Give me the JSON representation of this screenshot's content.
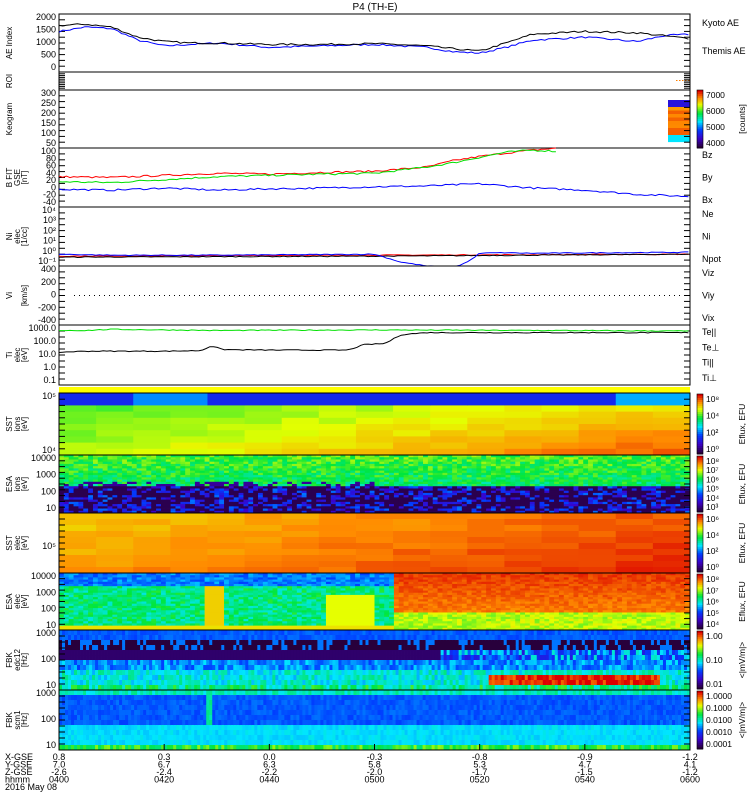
{
  "title": "P4 (TH-E)",
  "colors": {
    "red": "#ff0000",
    "green": "#00e000",
    "blue": "#0000ff",
    "black": "#000000",
    "yellow": "#ffff00",
    "orange": "#ff8000"
  },
  "chart_data": {
    "type": "multi-panel",
    "time_axis": {
      "minutes": [
        0,
        20,
        40,
        60,
        80,
        100,
        120
      ],
      "labels": [
        "0400",
        "0420",
        "0440",
        "0500",
        "0520",
        "0540",
        "0600"
      ],
      "date": "2016 May 08",
      "rows": [
        {
          "label": "X-GSE",
          "values": [
            "0.8",
            "0.3",
            "0.0",
            "-0.3",
            "-0.8",
            "-0.9",
            "-1.2"
          ]
        },
        {
          "label": "Y-GSE",
          "values": [
            "7.0",
            "6.7",
            "6.3",
            "5.8",
            "5.3",
            "4.7",
            "4.1"
          ]
        },
        {
          "label": "Z-GSE",
          "values": [
            "-2.6",
            "-2.4",
            "-2.2",
            "-2.0",
            "-1.7",
            "-1.5",
            "-1.2"
          ]
        },
        {
          "label": "hhmm",
          "values": [
            "0400",
            "0420",
            "0440",
            "0500",
            "0520",
            "0540",
            "0600"
          ]
        }
      ]
    },
    "panels": [
      {
        "id": "ae",
        "ylabel": "AE Index",
        "ticks": [
          "2000",
          "1500",
          "1000",
          "500",
          "0"
        ],
        "ylim": [
          0,
          2000
        ],
        "series": [
          {
            "name": "Kyoto AE",
            "color": "#0000ff",
            "x": [
              0,
              5,
              10,
              15,
              20,
              25,
              30,
              40,
              50,
              60,
              70,
              75,
              80,
              85,
              90,
              100,
              110,
              115,
              120
            ],
            "y": [
              1400,
              1550,
              1500,
              1100,
              900,
              950,
              1000,
              850,
              900,
              950,
              850,
              700,
              650,
              850,
              1100,
              1200,
              1050,
              1250,
              1300
            ]
          },
          {
            "name": "Themis AE",
            "color": "#000000",
            "x": [
              0,
              5,
              10,
              15,
              20,
              25,
              30,
              40,
              50,
              60,
              70,
              75,
              80,
              85,
              90,
              100,
              110,
              115,
              120
            ],
            "y": [
              1600,
              1650,
              1550,
              1200,
              1050,
              1000,
              1000,
              950,
              950,
              980,
              900,
              800,
              720,
              1000,
              1300,
              1400,
              1350,
              1250,
              1150
            ]
          }
        ]
      },
      {
        "id": "roi",
        "ylabel": "ROI"
      },
      {
        "id": "keogram",
        "ylabel": "Keogram",
        "ticks": [
          "300",
          "250",
          "200",
          "150",
          "100",
          "50"
        ],
        "colorbar": {
          "ticks": [
            "7000",
            "6000",
            "5000",
            "4000"
          ],
          "unit": "[counts]"
        }
      },
      {
        "id": "bfield",
        "ylabel": "B FIT",
        "ylabel2": "GSE",
        "ylabel3": "[nT]",
        "ticks": [
          "100",
          "80",
          "60",
          "40",
          "20",
          "0",
          "-20",
          "-40"
        ],
        "ylim": [
          -40,
          100
        ],
        "series": [
          {
            "name": "Bz",
            "color": "#ff0000",
            "x": [
              0,
              10,
              20,
              30,
              40,
              50,
              60,
              70,
              75,
              80,
              85,
              90,
              95
            ],
            "y": [
              32,
              30,
              35,
              40,
              38,
              42,
              45,
              55,
              70,
              80,
              88,
              95,
              100
            ]
          },
          {
            "name": "By",
            "color": "#00e000",
            "x": [
              0,
              10,
              20,
              30,
              40,
              50,
              60,
              70,
              75,
              80,
              85,
              90,
              95
            ],
            "y": [
              20,
              18,
              25,
              32,
              35,
              38,
              40,
              55,
              65,
              78,
              90,
              95,
              92
            ]
          },
          {
            "name": "Bx",
            "color": "#0000ff",
            "x": [
              0,
              10,
              20,
              30,
              40,
              50,
              60,
              70,
              80,
              90,
              100,
              110,
              120
            ],
            "y": [
              2,
              0,
              5,
              0,
              3,
              5,
              8,
              10,
              15,
              5,
              0,
              -10,
              -15
            ]
          }
        ]
      },
      {
        "id": "density",
        "ylabel": "Ni",
        "ylabel2": "elec",
        "ylabel3": "[1/cc]",
        "ticks": [
          "10⁴",
          "10³",
          "10²",
          "10¹",
          "10⁰",
          "10⁻¹"
        ],
        "ylim_log10": [
          -1,
          5
        ],
        "series": [
          {
            "name": "Ne",
            "color": "#ff0000",
            "x": [
              0,
              30,
              60,
              90,
              120
            ],
            "y": [
              0.0,
              0.05,
              0.1,
              0.15,
              0.2
            ]
          },
          {
            "name": "Ni",
            "color": "#000000",
            "x": [
              0,
              30,
              60,
              90,
              120
            ],
            "y": [
              -0.1,
              -0.05,
              0.0,
              0.1,
              0.2
            ]
          },
          {
            "name": "Npot",
            "color": "#0000ff",
            "x": [
              0,
              10,
              30,
              60,
              65,
              70,
              75,
              78,
              80,
              85,
              90,
              120
            ],
            "y": [
              0.2,
              0.1,
              0.1,
              0.2,
              -0.6,
              -1.0,
              -1.2,
              -0.5,
              0.3,
              0.35,
              0.3,
              0.4
            ]
          }
        ]
      },
      {
        "id": "velocity",
        "ylabel": "Vi",
        "ylabel3": "[km/s]",
        "ticks": [
          "400",
          "200",
          "0",
          "-200",
          "-400"
        ],
        "ylim": [
          -500,
          500
        ],
        "series": [
          {
            "name": "Viz",
            "color": "#ff0000"
          },
          {
            "name": "Viy",
            "color": "#00e000"
          },
          {
            "name": "Vix",
            "color": "#0000ff"
          }
        ]
      },
      {
        "id": "temperature",
        "ylabel": "Ti",
        "ylabel2": "elec",
        "ylabel3": "[eV]",
        "ticks": [
          "1000.0",
          "100.0",
          "10.0",
          "1.0",
          "0.1"
        ],
        "ylim_log10": [
          -1.5,
          4
        ],
        "series": [
          {
            "name": "Te||",
            "color": "#000000",
            "x": [
              0,
              5,
              10,
              20,
              27,
              29,
              31,
              40,
              55,
              58,
              62,
              65,
              67,
              70,
              120
            ],
            "y": [
              1.5,
              1.6,
              1.6,
              1.6,
              1.65,
              2.1,
              1.75,
              1.7,
              1.7,
              2.2,
              2.3,
              3.1,
              3.2,
              3.3,
              3.3
            ]
          },
          {
            "name": "Te⊥",
            "color": "#ff0000"
          },
          {
            "name": "Ti||",
            "color": "#00e000",
            "x": [
              0,
              5,
              10,
              30,
              60,
              90,
              120
            ],
            "y": [
              3.5,
              3.5,
              3.6,
              3.5,
              3.55,
              3.5,
              3.45
            ]
          },
          {
            "name": "Ti⊥",
            "color": "#0000ff"
          }
        ]
      },
      {
        "id": "sst-ion",
        "ylabel": "SST",
        "ylabel2": "ions",
        "ylabel3": "[eV]",
        "ticks": [
          "10⁵",
          "10⁴"
        ],
        "colorbar": {
          "ticks": [
            "10⁸",
            "10⁴",
            "10²",
            "10⁰"
          ],
          "unit": "Eflux, EFU"
        }
      },
      {
        "id": "esa-ion",
        "ylabel": "ESA",
        "ylabel2": "ions",
        "ylabel3": "[eV]",
        "ticks": [
          "10000",
          "1000",
          "100",
          "10"
        ],
        "colorbar": {
          "ticks": [
            "10⁸",
            "10⁷",
            "10⁶",
            "10⁵",
            "10⁴",
            "10³"
          ],
          "unit": "Eflux, EFU"
        }
      },
      {
        "id": "sst-elec",
        "ylabel": "SST",
        "ylabel2": "elec",
        "ylabel3": "[eV]",
        "ticks": [
          "10⁵"
        ],
        "colorbar": {
          "ticks": [
            "10⁶",
            "10⁴",
            "10²",
            "10⁰"
          ],
          "unit": "Eflux, EFU"
        }
      },
      {
        "id": "esa-elec",
        "ylabel": "ESA",
        "ylabel2": "elec",
        "ylabel3": "[eV]",
        "ticks": [
          "10000",
          "1000",
          "100",
          "10"
        ],
        "colorbar": {
          "ticks": [
            "10⁸",
            "10⁷",
            "10⁶",
            "10⁵",
            "10⁴"
          ],
          "unit": "Eflux, EFU"
        }
      },
      {
        "id": "fbk-edc12",
        "ylabel": "FBK",
        "ylabel2": "edc12",
        "ylabel3": "[Hz]",
        "ticks": [
          "1000",
          "100",
          "10"
        ],
        "colorbar": {
          "ticks": [
            "1.00",
            "0.10",
            "0.01"
          ],
          "unit": "<|mV/m|>"
        }
      },
      {
        "id": "fbk-scm1",
        "ylabel": "FBK",
        "ylabel2": "scm1",
        "ylabel3": "[Hz]",
        "ticks": [
          "1000",
          "100",
          "10"
        ],
        "colorbar": {
          "ticks": [
            "1.0000",
            "0.1000",
            "0.0100",
            "0.0010",
            "0.0001"
          ],
          "unit": "<|mV/m|>"
        }
      }
    ]
  }
}
